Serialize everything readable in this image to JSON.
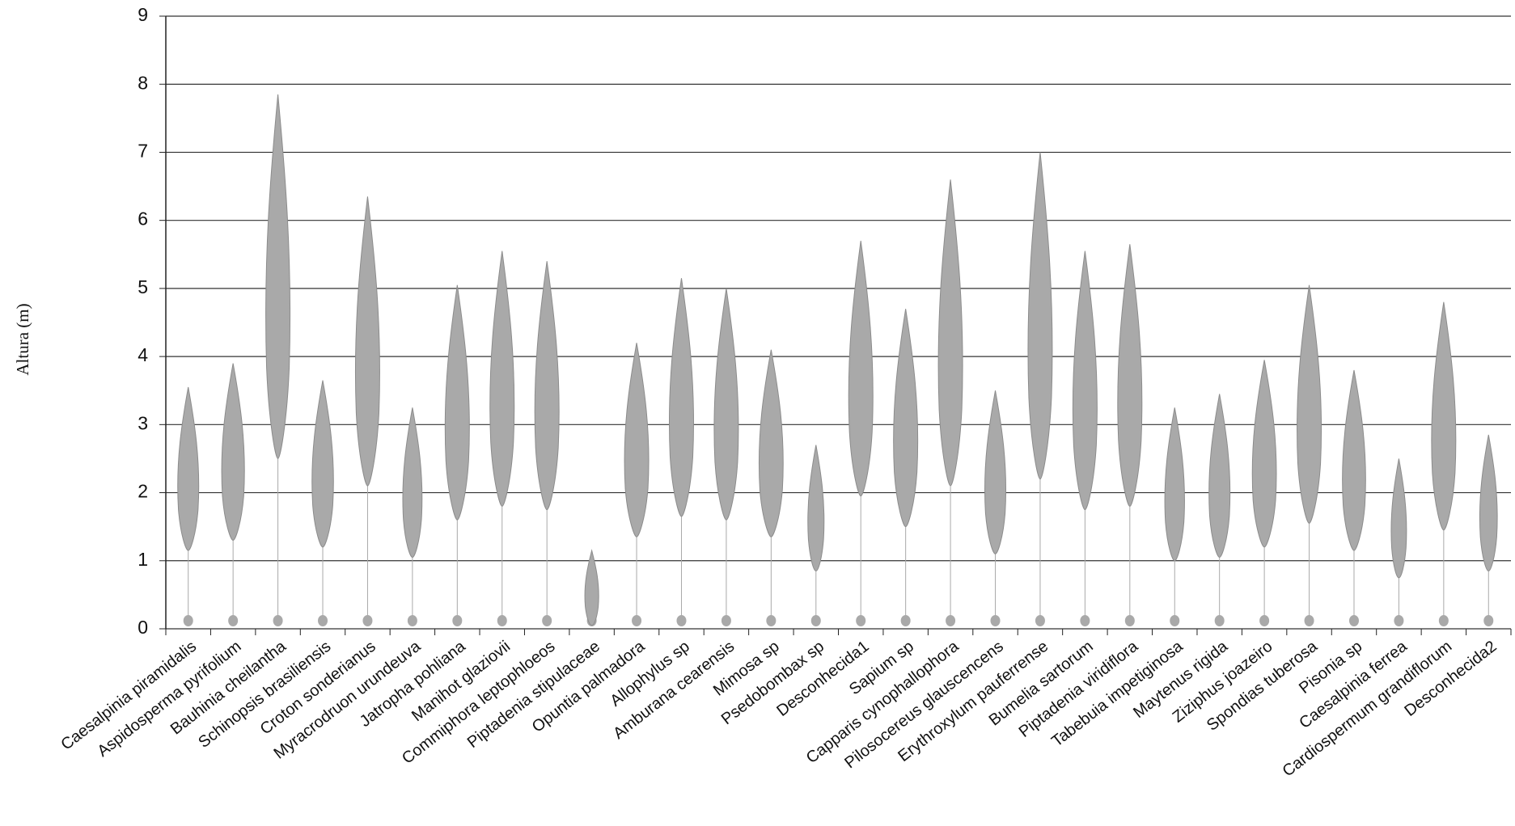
{
  "chart_data": {
    "type": "range",
    "y_label": "Altura (m)",
    "categories": [
      "Caesalpinia piramidalis",
      "Aspidosperma pyrifolium",
      "Bauhinia cheilantha",
      "Schinopsis brasiliensis",
      "Croton sonderianus",
      "Myracrodruon urundeuva",
      "Jatropha pohliana",
      "Manihot glaziovii",
      "Commiphora leptophloeos",
      "Piptadenia stipulaceae",
      "Opuntia palmadora",
      "Allophylus sp",
      "Amburana cearensis",
      "Mimosa sp",
      "Psedobombax sp",
      "Desconhecida1",
      "Sapium sp",
      "Capparis cynophallophora",
      "Pilosocereus glauscencens",
      "Erythroxylum pauferrense",
      "Bumelia sartorum",
      "Piptadenia viridiflora",
      "Tabebuia impetiginosa",
      "Maytenus rigida",
      "Ziziphus joazeiro",
      "Spondias tuberosa",
      "Pisonia sp",
      "Caesalpinia ferrea",
      "Cardiospermum grandiflorum",
      "Desconhecida2"
    ],
    "low": [
      1.15,
      1.3,
      2.5,
      1.2,
      2.1,
      1.05,
      1.6,
      1.8,
      1.75,
      0.05,
      1.35,
      1.65,
      1.6,
      1.35,
      0.85,
      1.95,
      1.5,
      2.1,
      1.1,
      2.2,
      1.75,
      1.8,
      1.0,
      1.05,
      1.2,
      1.55,
      1.15,
      0.75,
      1.45,
      0.85
    ],
    "high": [
      3.55,
      3.9,
      7.85,
      3.65,
      6.35,
      3.25,
      5.05,
      5.55,
      5.4,
      1.15,
      4.2,
      5.15,
      5.0,
      4.1,
      2.7,
      5.7,
      4.7,
      6.6,
      3.5,
      7.0,
      5.55,
      5.65,
      3.25,
      3.45,
      3.95,
      5.05,
      3.8,
      2.5,
      4.8,
      2.85
    ],
    "color": "#a9a9a9",
    "ylim": [
      0,
      9
    ],
    "yticks": [
      0,
      1,
      2,
      3,
      4,
      5,
      6,
      7,
      8,
      9
    ],
    "grid": true
  }
}
